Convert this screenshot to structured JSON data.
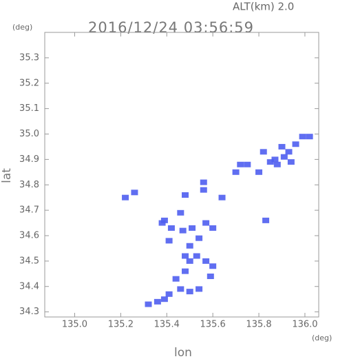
{
  "chart_data": {
    "type": "scatter",
    "title": "2016/12/24 03:56:59",
    "altitude_label": "ALT(km)  2.0",
    "y_unit": "(deg)",
    "x_unit": "(deg)",
    "x_label": "lon",
    "y_label": "lat",
    "xlim": [
      134.87,
      136.06
    ],
    "ylim": [
      34.28,
      35.4
    ],
    "xticks": [
      {
        "value": 135,
        "label": "135.0"
      },
      135.2,
      135.4,
      135.6,
      135.8,
      {
        "value": 136,
        "label": "136.0"
      }
    ],
    "yticks": [
      35.3,
      35.2,
      35.1,
      {
        "value": 35,
        "label": "35.0"
      },
      34.9,
      34.8,
      34.7,
      34.6,
      34.5,
      34.4,
      34.3
    ],
    "series": [
      {
        "color": "#4f5ef0",
        "x": [
          135.9,
          135.87,
          135.85,
          135.88,
          135.91,
          135.93,
          135.94,
          135.96,
          135.99,
          136.02,
          135.82,
          135.75,
          135.72,
          135.7,
          135.8,
          135.56,
          135.64,
          135.56,
          135.22,
          135.26,
          135.48,
          135.46,
          135.39,
          135.38,
          135.42,
          135.47,
          135.51,
          135.57,
          135.6,
          135.54,
          135.5,
          135.48,
          135.53,
          135.57,
          135.6,
          135.59,
          135.5,
          135.48,
          135.44,
          135.46,
          135.41,
          135.39,
          135.36,
          135.32,
          135.5,
          135.54,
          135.83,
          135.41
        ],
        "values": [
          34.95,
          34.9,
          34.89,
          34.88,
          34.91,
          34.93,
          34.89,
          34.96,
          34.99,
          34.99,
          34.93,
          34.88,
          34.88,
          34.85,
          34.85,
          34.81,
          34.75,
          34.78,
          34.75,
          34.77,
          34.76,
          34.69,
          34.66,
          34.65,
          34.63,
          34.62,
          34.63,
          34.65,
          34.63,
          34.59,
          34.56,
          34.52,
          34.52,
          34.5,
          34.48,
          34.44,
          34.5,
          34.46,
          34.43,
          34.39,
          34.37,
          34.35,
          34.34,
          34.33,
          34.38,
          34.39,
          34.66,
          34.58
        ]
      }
    ]
  }
}
